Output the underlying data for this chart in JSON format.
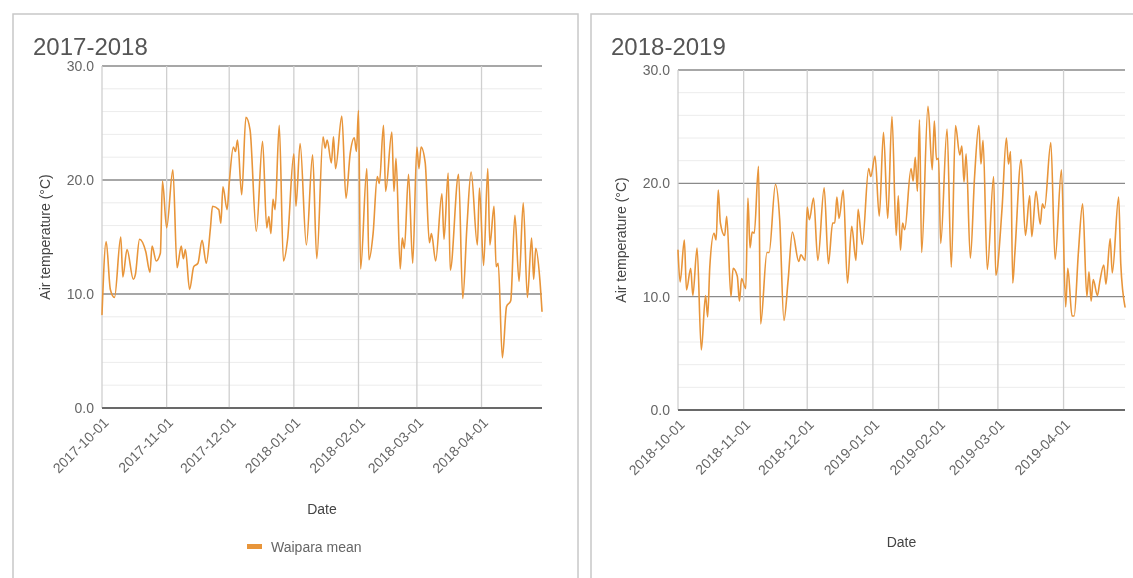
{
  "chart_data": [
    {
      "type": "line",
      "title": "2017-2018",
      "xlabel": "Date",
      "ylabel": "Air temperature (°C)",
      "xlim": [
        "2017-10-01",
        "2018-04-30"
      ],
      "xticks": [
        "2017-10-01",
        "2017-11-01",
        "2017-12-01",
        "2018-01-01",
        "2018-02-01",
        "2018-03-01",
        "2018-04-01"
      ],
      "ylim": [
        0,
        30
      ],
      "yticks": [
        {
          "value": 0,
          "label": "0.0"
        },
        {
          "value": 2,
          "label": null
        },
        {
          "value": 4,
          "label": null
        },
        {
          "value": 6,
          "label": null
        },
        {
          "value": 8,
          "label": null
        },
        {
          "value": 10,
          "label": "10.0"
        },
        {
          "value": 12,
          "label": null
        },
        {
          "value": 14,
          "label": null
        },
        {
          "value": 16,
          "label": null
        },
        {
          "value": 18,
          "label": null
        },
        {
          "value": 20,
          "label": "20.0"
        },
        {
          "value": 22,
          "label": null
        },
        {
          "value": 24,
          "label": null
        },
        {
          "value": 26,
          "label": null
        },
        {
          "value": 28,
          "label": null
        },
        {
          "value": 30,
          "label": "30.0"
        }
      ],
      "grid": true,
      "legend": "bottom",
      "marker": "none",
      "line_style": "solid",
      "series": [
        {
          "name": "Waipara mean",
          "color": "#e8953a",
          "x": [
            "2017-10-01",
            "2017-10-03",
            "2017-10-05",
            "2017-10-07",
            "2017-10-10",
            "2017-10-11",
            "2017-10-13",
            "2017-10-16",
            "2017-10-17",
            "2017-10-19",
            "2017-10-22",
            "2017-10-24",
            "2017-10-25",
            "2017-10-27",
            "2017-10-29",
            "2017-10-30",
            "2017-11-01",
            "2017-11-04",
            "2017-11-06",
            "2017-11-08",
            "2017-11-09",
            "2017-11-10",
            "2017-11-12",
            "2017-11-14",
            "2017-11-16",
            "2017-11-18",
            "2017-11-20",
            "2017-11-22",
            "2017-11-23",
            "2017-11-26",
            "2017-11-27",
            "2017-11-28",
            "2017-11-30",
            "2017-12-01",
            "2017-12-03",
            "2017-12-04",
            "2017-12-05",
            "2017-12-07",
            "2017-12-09",
            "2017-12-11",
            "2017-12-14",
            "2017-12-17",
            "2017-12-19",
            "2017-12-20",
            "2017-12-21",
            "2017-12-22",
            "2017-12-23",
            "2017-12-25",
            "2017-12-27",
            "2017-12-29",
            "2018-01-01",
            "2018-01-02",
            "2018-01-04",
            "2018-01-07",
            "2018-01-10",
            "2018-01-12",
            "2018-01-15",
            "2018-01-16",
            "2018-01-17",
            "2018-01-19",
            "2018-01-20",
            "2018-01-21",
            "2018-01-24",
            "2018-01-26",
            "2018-01-28",
            "2018-01-30",
            "2018-01-31",
            "2018-02-01",
            "2018-02-02",
            "2018-02-05",
            "2018-02-06",
            "2018-02-08",
            "2018-02-10",
            "2018-02-11",
            "2018-02-13",
            "2018-02-14",
            "2018-02-17",
            "2018-02-18",
            "2018-02-19",
            "2018-02-21",
            "2018-02-22",
            "2018-02-23",
            "2018-02-25",
            "2018-02-27",
            "2018-03-01",
            "2018-03-02",
            "2018-03-03",
            "2018-03-05",
            "2018-03-07",
            "2018-03-08",
            "2018-03-10",
            "2018-03-13",
            "2018-03-14",
            "2018-03-16",
            "2018-03-17",
            "2018-03-21",
            "2018-03-23",
            "2018-03-25",
            "2018-03-27",
            "2018-03-30",
            "2018-03-31",
            "2018-04-02",
            "2018-04-04",
            "2018-04-05",
            "2018-04-07",
            "2018-04-08",
            "2018-04-09",
            "2018-04-11",
            "2018-04-13",
            "2018-04-15",
            "2018-04-17",
            "2018-04-19",
            "2018-04-21",
            "2018-04-23",
            "2018-04-25",
            "2018-04-26",
            "2018-04-27",
            "2018-04-29",
            "2018-04-30"
          ],
          "values": [
            8.2,
            14.6,
            10.4,
            9.7,
            15.0,
            11.5,
            13.9,
            11.3,
            11.7,
            14.8,
            13.7,
            11.9,
            14.2,
            12.9,
            13.6,
            19.9,
            15.8,
            20.9,
            12.3,
            14.2,
            13.1,
            13.9,
            10.4,
            12.4,
            12.7,
            14.7,
            12.7,
            15.8,
            17.7,
            17.4,
            16.2,
            19.4,
            17.4,
            19.7,
            22.9,
            22.5,
            23.5,
            18.7,
            25.5,
            24.4,
            15.5,
            23.4,
            15.8,
            16.8,
            15.3,
            18.3,
            17.4,
            24.8,
            12.9,
            14.8,
            22.3,
            17.7,
            23.2,
            14.3,
            22.2,
            13.1,
            23.8,
            22.8,
            23.5,
            21.5,
            23.8,
            21.0,
            25.6,
            18.4,
            22.3,
            23.7,
            22.5,
            26.1,
            12.2,
            21.0,
            13.0,
            15.3,
            20.3,
            19.7,
            24.8,
            19.0,
            24.2,
            19.0,
            21.9,
            12.2,
            14.9,
            14.0,
            20.5,
            12.7,
            22.9,
            21.0,
            22.9,
            21.5,
            14.5,
            15.3,
            12.9,
            18.8,
            14.8,
            20.6,
            12.1,
            20.5,
            9.6,
            15.9,
            20.7,
            14.3,
            19.3,
            12.5,
            21.0,
            14.3,
            17.7,
            12.4,
            12.7,
            4.4,
            8.9,
            9.4,
            16.9,
            11.1,
            18.0,
            9.7,
            14.9,
            11.3,
            14.0,
            11.2,
            8.5
          ]
        }
      ]
    },
    {
      "type": "line",
      "title": "2018-2019",
      "xlabel": "Date",
      "ylabel": "Air temperature (°C)",
      "xlim": [
        "2018-10-01",
        "2019-04-30"
      ],
      "xticks": [
        "2018-10-01",
        "2018-11-01",
        "2018-12-01",
        "2019-01-01",
        "2019-02-01",
        "2019-03-01",
        "2019-04-01"
      ],
      "ylim": [
        0,
        30
      ],
      "yticks": [
        {
          "value": 0,
          "label": "0.0"
        },
        {
          "value": 2,
          "label": null
        },
        {
          "value": 4,
          "label": null
        },
        {
          "value": 6,
          "label": null
        },
        {
          "value": 8,
          "label": null
        },
        {
          "value": 10,
          "label": "10.0"
        },
        {
          "value": 12,
          "label": null
        },
        {
          "value": 14,
          "label": null
        },
        {
          "value": 16,
          "label": null
        },
        {
          "value": 18,
          "label": null
        },
        {
          "value": 20,
          "label": "20.0"
        },
        {
          "value": 22,
          "label": null
        },
        {
          "value": 24,
          "label": null
        },
        {
          "value": 26,
          "label": null
        },
        {
          "value": 28,
          "label": null
        },
        {
          "value": 30,
          "label": "30.0"
        }
      ],
      "grid": true,
      "marker": "none",
      "line_style": "solid",
      "series": [
        {
          "color": "#e8953a",
          "x": [
            "2018-10-01",
            "2018-10-02",
            "2018-10-04",
            "2018-10-05",
            "2018-10-07",
            "2018-10-08",
            "2018-10-10",
            "2018-10-12",
            "2018-10-14",
            "2018-10-15",
            "2018-10-16",
            "2018-10-18",
            "2018-10-19",
            "2018-10-20",
            "2018-10-21",
            "2018-10-23",
            "2018-10-24",
            "2018-10-26",
            "2018-10-27",
            "2018-10-29",
            "2018-10-30",
            "2018-10-31",
            "2018-11-02",
            "2018-11-03",
            "2018-11-04",
            "2018-11-05",
            "2018-11-06",
            "2018-11-08",
            "2018-11-09",
            "2018-11-12",
            "2018-11-13",
            "2018-11-16",
            "2018-11-18",
            "2018-11-20",
            "2018-11-22",
            "2018-11-24",
            "2018-11-27",
            "2018-11-28",
            "2018-11-30",
            "2018-12-01",
            "2018-12-02",
            "2018-12-04",
            "2018-12-06",
            "2018-12-09",
            "2018-12-11",
            "2018-12-13",
            "2018-12-14",
            "2018-12-15",
            "2018-12-16",
            "2018-12-18",
            "2018-12-20",
            "2018-12-22",
            "2018-12-24",
            "2018-12-25",
            "2018-12-27",
            "2018-12-30",
            "2018-12-31",
            "2019-01-02",
            "2019-01-04",
            "2019-01-06",
            "2019-01-08",
            "2019-01-10",
            "2019-01-12",
            "2019-01-13",
            "2019-01-14",
            "2019-01-15",
            "2019-01-16",
            "2019-01-19",
            "2019-01-20",
            "2019-01-21",
            "2019-01-22",
            "2019-01-23",
            "2019-01-24",
            "2019-01-27",
            "2019-01-29",
            "2019-01-30",
            "2019-01-31",
            "2019-02-01",
            "2019-02-02",
            "2019-02-05",
            "2019-02-07",
            "2019-02-09",
            "2019-02-11",
            "2019-02-12",
            "2019-02-13",
            "2019-02-14",
            "2019-02-16",
            "2019-02-18",
            "2019-02-20",
            "2019-02-21",
            "2019-02-22",
            "2019-02-24",
            "2019-02-27",
            "2019-02-28",
            "2019-03-03",
            "2019-03-05",
            "2019-03-06",
            "2019-03-07",
            "2019-03-08",
            "2019-03-09",
            "2019-03-12",
            "2019-03-14",
            "2019-03-16",
            "2019-03-17",
            "2019-03-19",
            "2019-03-21",
            "2019-03-22",
            "2019-03-23",
            "2019-03-26",
            "2019-03-28",
            "2019-03-31",
            "2019-04-02",
            "2019-04-03",
            "2019-04-05",
            "2019-04-06",
            "2019-04-08",
            "2019-04-10",
            "2019-04-12",
            "2019-04-13",
            "2019-04-14",
            "2019-04-15",
            "2019-04-17",
            "2019-04-18",
            "2019-04-20",
            "2019-04-21",
            "2019-04-23",
            "2019-04-24",
            "2019-04-27",
            "2019-04-28",
            "2019-04-30"
          ],
          "values": [
            14.1,
            11.3,
            15.0,
            10.6,
            12.5,
            10.1,
            14.3,
            5.3,
            10.1,
            8.2,
            12.6,
            15.6,
            15.0,
            19.4,
            16.5,
            15.4,
            17.1,
            10.0,
            12.5,
            11.8,
            9.6,
            11.6,
            10.7,
            18.7,
            14.3,
            15.7,
            15.6,
            21.5,
            7.6,
            13.9,
            13.9,
            19.9,
            16.8,
            7.9,
            11.5,
            15.7,
            13.1,
            13.7,
            13.2,
            17.9,
            16.8,
            18.7,
            13.2,
            19.6,
            12.9,
            16.5,
            16.5,
            18.8,
            16.9,
            19.4,
            11.2,
            16.2,
            13.2,
            17.7,
            14.6,
            21.3,
            20.6,
            22.4,
            17.1,
            24.5,
            16.9,
            25.9,
            15.4,
            18.9,
            14.1,
            16.5,
            15.9,
            21.3,
            20.2,
            22.3,
            19.3,
            25.6,
            13.9,
            26.8,
            21.2,
            25.5,
            22.1,
            22.2,
            14.7,
            24.8,
            12.6,
            25.1,
            22.5,
            23.3,
            20.1,
            22.6,
            13.4,
            20.6,
            25.1,
            21.7,
            23.8,
            12.4,
            20.6,
            11.9,
            17.9,
            24.0,
            21.7,
            22.8,
            11.2,
            13.8,
            22.1,
            15.4,
            18.9,
            15.3,
            19.3,
            16.4,
            18.2,
            17.8,
            23.6,
            13.3,
            21.2,
            9.1,
            12.5,
            8.3,
            8.3,
            13.9,
            18.2,
            10.0,
            12.2,
            9.6,
            11.5,
            10.1,
            11.2,
            12.8,
            11.1,
            15.1,
            12.1,
            18.8,
            12.9,
            9.1
          ]
        }
      ]
    }
  ]
}
